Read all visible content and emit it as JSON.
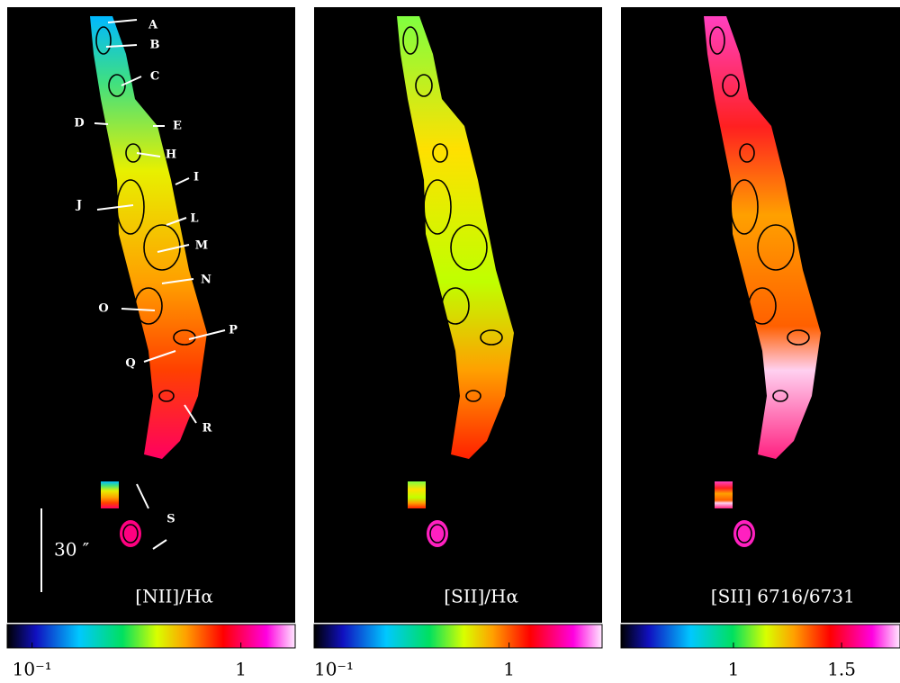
{
  "panels": [
    {
      "title": "[NII]/Hα",
      "markers": [
        "A",
        "B",
        "C",
        "D",
        "E",
        "H",
        "I",
        "J",
        "L",
        "M",
        "N",
        "O",
        "P",
        "Q",
        "R",
        "S"
      ],
      "scale_bar": "30 ″",
      "colorbar": {
        "scale": "log",
        "lim": [
          0.076,
          1.82
        ],
        "ticks": [
          {
            "value": 0.1,
            "label": "10⁻¹"
          },
          1
        ]
      }
    },
    {
      "title": "[SII]/Hα",
      "colorbar": {
        "scale": "log",
        "lim": [
          0.1,
          3
        ],
        "ticks": [
          {
            "value": 0.1,
            "label": "10⁻¹"
          },
          1
        ]
      }
    },
    {
      "title": "[SII] 6716/6731",
      "colorbar": {
        "scale": "linear",
        "lim": [
          0.48,
          1.77
        ],
        "ticks": [
          1,
          1.5
        ]
      }
    }
  ]
}
